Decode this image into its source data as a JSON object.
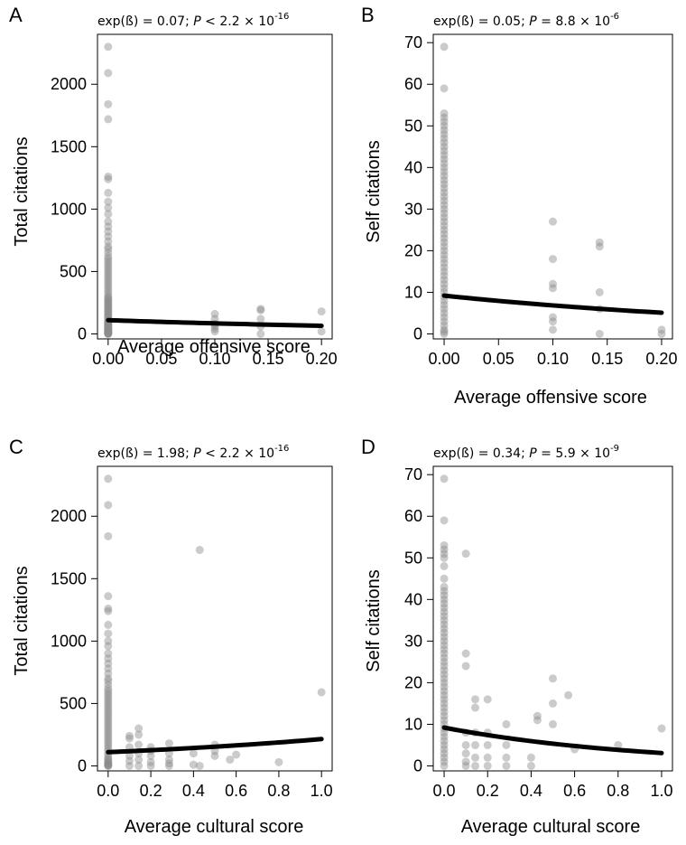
{
  "figure": {
    "background": "#ffffff",
    "point_color": "#8c8c8c",
    "line_color": "#000000"
  },
  "chart_data": [
    {
      "id": "A",
      "type": "scatter",
      "panel_label": "A",
      "stat": {
        "prefix": "exp(ß) = 0.07; ",
        "p_symbol": "P",
        "relation": " < 2.2 × 10",
        "exponent": "-16"
      },
      "xlabel": "Average offensive score",
      "ylabel": "Total citations",
      "xlim": [
        -0.01,
        0.21
      ],
      "ylim": [
        -40,
        2400
      ],
      "xticks": [
        0,
        0.05,
        0.1,
        0.15,
        0.2
      ],
      "xtick_labels": [
        "0.00",
        "0.05",
        "0.10",
        "0.15",
        "0.20"
      ],
      "yticks": [
        0,
        500,
        1000,
        1500,
        2000
      ],
      "ytick_labels": [
        "0",
        "500",
        "1000",
        "1500",
        "2000"
      ],
      "points": {
        "x": [
          0,
          0,
          0,
          0,
          0,
          0,
          0,
          0,
          0,
          0,
          0,
          0,
          0,
          0,
          0,
          0,
          0,
          0,
          0,
          0,
          0,
          0,
          0,
          0,
          0,
          0,
          0,
          0,
          0,
          0,
          0,
          0,
          0,
          0,
          0,
          0,
          0,
          0,
          0,
          0,
          0,
          0,
          0,
          0,
          0,
          0,
          0,
          0,
          0,
          0,
          0,
          0,
          0,
          0,
          0,
          0,
          0,
          0,
          0,
          0,
          0,
          0,
          0,
          0,
          0,
          0,
          0,
          0,
          0,
          0,
          0,
          0,
          0,
          0,
          0,
          0,
          0,
          0,
          0,
          0,
          0.1,
          0.1,
          0.1,
          0.1,
          0.1,
          0.1,
          0.143,
          0.143,
          0.143,
          0.143,
          0.143,
          0.2,
          0.2
        ],
        "y": [
          2300,
          2090,
          1840,
          1720,
          1260,
          1240,
          1130,
          1060,
          1010,
          960,
          900,
          860,
          820,
          780,
          740,
          700,
          680,
          650,
          620,
          600,
          580,
          560,
          540,
          520,
          500,
          480,
          460,
          440,
          420,
          400,
          380,
          360,
          340,
          320,
          300,
          290,
          280,
          270,
          260,
          250,
          240,
          230,
          220,
          210,
          200,
          190,
          180,
          170,
          160,
          150,
          140,
          130,
          120,
          110,
          100,
          95,
          90,
          85,
          80,
          75,
          70,
          65,
          60,
          55,
          50,
          45,
          40,
          35,
          30,
          25,
          20,
          18,
          15,
          12,
          10,
          8,
          5,
          3,
          1,
          0,
          160,
          120,
          80,
          60,
          40,
          20,
          200,
          190,
          120,
          60,
          0,
          180,
          20
        ]
      },
      "fit": {
        "x": [
          0,
          0.2
        ],
        "y": [
          110,
          65
        ]
      }
    },
    {
      "id": "B",
      "type": "scatter",
      "panel_label": "B",
      "stat": {
        "prefix": "exp(ß) = 0.05; ",
        "p_symbol": "P",
        "relation": " = 8.8 × 10",
        "exponent": "-6"
      },
      "xlabel": "Average offensive score",
      "ylabel": "Self citations",
      "xlim": [
        -0.01,
        0.21
      ],
      "ylim": [
        -1.2,
        72
      ],
      "xticks": [
        0,
        0.05,
        0.1,
        0.15,
        0.2
      ],
      "xtick_labels": [
        "0.00",
        "0.05",
        "0.10",
        "0.15",
        "0.20"
      ],
      "yticks": [
        0,
        10,
        20,
        30,
        40,
        50,
        60,
        70
      ],
      "ytick_labels": [
        "0",
        "10",
        "20",
        "30",
        "40",
        "50",
        "60",
        "70"
      ],
      "points": {
        "x": [
          0,
          0,
          0,
          0,
          0,
          0,
          0,
          0,
          0,
          0,
          0,
          0,
          0,
          0,
          0,
          0,
          0,
          0,
          0,
          0,
          0,
          0,
          0,
          0,
          0,
          0,
          0,
          0,
          0,
          0,
          0,
          0,
          0,
          0,
          0,
          0,
          0,
          0,
          0,
          0,
          0,
          0,
          0,
          0,
          0,
          0,
          0,
          0,
          0,
          0,
          0,
          0,
          0,
          0,
          0,
          0,
          0,
          0.1,
          0.1,
          0.1,
          0.1,
          0.1,
          0.1,
          0.1,
          0.143,
          0.143,
          0.143,
          0.143,
          0.143,
          0.2,
          0.2
        ],
        "y": [
          69,
          59,
          53,
          52,
          51,
          50,
          48,
          45,
          43,
          42,
          41,
          40,
          39,
          38,
          37,
          36,
          35,
          34,
          33,
          32,
          31,
          30,
          29,
          28,
          27,
          26,
          25,
          24,
          23,
          22,
          21,
          20,
          19,
          18,
          17,
          16,
          15,
          14,
          13,
          12,
          11,
          10,
          9,
          8,
          7,
          6,
          5,
          4,
          3,
          2,
          1,
          0.5,
          0,
          44,
          47,
          49,
          46,
          27,
          18,
          12,
          11,
          4,
          3,
          1,
          22,
          21,
          10,
          6,
          0,
          1,
          0
        ]
      },
      "fit": {
        "x": [
          0,
          0.2
        ],
        "y": [
          9.2,
          5.1
        ]
      }
    },
    {
      "id": "C",
      "type": "scatter",
      "panel_label": "C",
      "stat": {
        "prefix": "exp(ß) = 1.98; ",
        "p_symbol": "P",
        "relation": " < 2.2 × 10",
        "exponent": "-16"
      },
      "xlabel": "Average cultural score",
      "ylabel": "Total citations",
      "xlim": [
        -0.05,
        1.05
      ],
      "ylim": [
        -40,
        2400
      ],
      "xticks": [
        0,
        0.2,
        0.4,
        0.6,
        0.8,
        1.0
      ],
      "xtick_labels": [
        "0.0",
        "0.2",
        "0.4",
        "0.6",
        "0.8",
        "1.0"
      ],
      "yticks": [
        0,
        500,
        1000,
        1500,
        2000
      ],
      "ytick_labels": [
        "0",
        "500",
        "1000",
        "1500",
        "2000"
      ],
      "points": {
        "x": [
          0,
          0,
          0,
          0,
          0,
          0,
          0,
          0,
          0,
          0,
          0,
          0,
          0,
          0,
          0,
          0,
          0,
          0,
          0,
          0,
          0,
          0,
          0,
          0,
          0,
          0,
          0,
          0,
          0,
          0,
          0,
          0,
          0,
          0,
          0,
          0,
          0,
          0,
          0,
          0,
          0,
          0,
          0,
          0,
          0,
          0,
          0,
          0,
          0,
          0,
          0,
          0,
          0,
          0,
          0,
          0,
          0.1,
          0.1,
          0.1,
          0.1,
          0.1,
          0.1,
          0.143,
          0.143,
          0.143,
          0.143,
          0.143,
          0.143,
          0.2,
          0.2,
          0.2,
          0.2,
          0.2,
          0.286,
          0.286,
          0.286,
          0.286,
          0.286,
          0.4,
          0.4,
          0.429,
          0.429,
          0.5,
          0.5,
          0.5,
          0.571,
          0.6,
          0.8,
          1.0
        ],
        "y": [
          2300,
          2090,
          1840,
          1360,
          1260,
          1240,
          1130,
          1060,
          1000,
          960,
          900,
          860,
          820,
          780,
          740,
          700,
          680,
          650,
          620,
          600,
          580,
          560,
          540,
          520,
          500,
          480,
          460,
          440,
          420,
          400,
          380,
          360,
          340,
          320,
          300,
          280,
          260,
          240,
          220,
          200,
          180,
          160,
          140,
          120,
          100,
          80,
          60,
          50,
          40,
          30,
          20,
          15,
          10,
          5,
          2,
          0,
          240,
          220,
          150,
          80,
          40,
          0,
          300,
          250,
          170,
          100,
          50,
          0,
          150,
          120,
          80,
          30,
          0,
          180,
          100,
          50,
          20,
          0,
          100,
          10,
          1730,
          0,
          170,
          120,
          80,
          50,
          90,
          30,
          590
        ]
      },
      "fit": {
        "x": [
          0,
          1.0
        ],
        "y": [
          110,
          215
        ]
      }
    },
    {
      "id": "D",
      "type": "scatter",
      "panel_label": "D",
      "stat": {
        "prefix": "exp(ß) = 0.34; ",
        "p_symbol": "P",
        "relation": " = 5.9 × 10",
        "exponent": "-9"
      },
      "xlabel": "Average cultural score",
      "ylabel": "Self citations",
      "xlim": [
        -0.05,
        1.05
      ],
      "ylim": [
        -1.2,
        72
      ],
      "xticks": [
        0,
        0.2,
        0.4,
        0.6,
        0.8,
        1.0
      ],
      "xtick_labels": [
        "0.0",
        "0.2",
        "0.4",
        "0.6",
        "0.8",
        "1.0"
      ],
      "yticks": [
        0,
        10,
        20,
        30,
        40,
        50,
        60,
        70
      ],
      "ytick_labels": [
        "0",
        "10",
        "20",
        "30",
        "40",
        "50",
        "60",
        "70"
      ],
      "points": {
        "x": [
          0,
          0,
          0,
          0,
          0,
          0,
          0,
          0,
          0,
          0,
          0,
          0,
          0,
          0,
          0,
          0,
          0,
          0,
          0,
          0,
          0,
          0,
          0,
          0,
          0,
          0,
          0,
          0,
          0,
          0,
          0,
          0,
          0,
          0,
          0,
          0,
          0,
          0,
          0,
          0,
          0,
          0,
          0,
          0,
          0,
          0,
          0,
          0,
          0,
          0,
          0,
          0,
          0.1,
          0.1,
          0.1,
          0.1,
          0.1,
          0.1,
          0.1,
          0.1,
          0.143,
          0.143,
          0.143,
          0.143,
          0.143,
          0.143,
          0.2,
          0.2,
          0.2,
          0.2,
          0.2,
          0.286,
          0.286,
          0.286,
          0.286,
          0.4,
          0.4,
          0.429,
          0.429,
          0.5,
          0.5,
          0.5,
          0.571,
          0.6,
          0.8,
          1.0
        ],
        "y": [
          69,
          59,
          53,
          52,
          51,
          50,
          48,
          45,
          43,
          42,
          41,
          40,
          39,
          38,
          37,
          36,
          35,
          34,
          33,
          32,
          31,
          30,
          29,
          28,
          27,
          26,
          25,
          24,
          23,
          22,
          21,
          20,
          19,
          18,
          17,
          16,
          15,
          14,
          13,
          12,
          11,
          10,
          9,
          8,
          7,
          6,
          5,
          4,
          3,
          2,
          1,
          0,
          51,
          27,
          24,
          8,
          5,
          3,
          1,
          0,
          16,
          14,
          8,
          5,
          2,
          0,
          16,
          8,
          5,
          2,
          0,
          10,
          5,
          2,
          0,
          2,
          0,
          12,
          11,
          21,
          15,
          10,
          17,
          4,
          5,
          9
        ]
      },
      "fit": {
        "x": [
          0,
          1.0
        ],
        "y": [
          9.2,
          3.1
        ]
      }
    }
  ]
}
